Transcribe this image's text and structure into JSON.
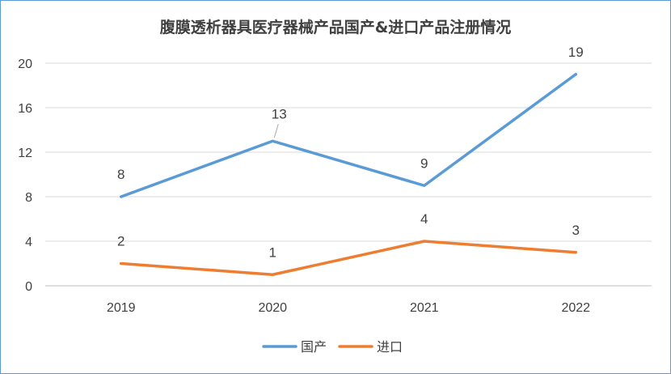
{
  "chart_data": {
    "type": "line",
    "title": "腹膜透析器具医疗器械产品国产&进口产品注册情况",
    "categories": [
      "2019",
      "2020",
      "2021",
      "2022"
    ],
    "series": [
      {
        "name": "国产",
        "values": [
          8,
          13,
          9,
          19
        ],
        "color": "#5b9bd5"
      },
      {
        "name": "进口",
        "values": [
          2,
          1,
          4,
          3
        ],
        "color": "#ed7d31"
      }
    ],
    "ylim": [
      0,
      20
    ],
    "yticks": [
      0,
      4,
      8,
      12,
      16,
      20
    ],
    "grid": true,
    "legend_position": "bottom"
  }
}
